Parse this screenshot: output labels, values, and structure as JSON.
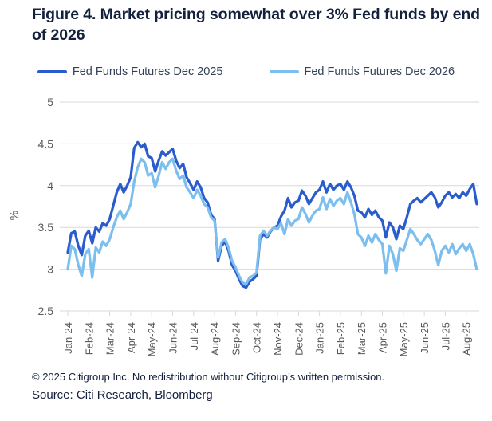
{
  "figure": {
    "title": "Figure 4. Market pricing somewhat over 3% Fed funds by end of 2026"
  },
  "chart_data": {
    "type": "line",
    "title": "Figure 4. Market pricing somewhat over 3% Fed funds by end of 2026",
    "xlabel": "",
    "ylabel": "%",
    "ylim": [
      2.5,
      5
    ],
    "yticks": [
      2.5,
      3,
      3.5,
      4,
      4.5,
      5
    ],
    "grid": "horizontal",
    "legend_position": "top",
    "x_tick_labels": [
      "Jan-24",
      "Feb-24",
      "Mar-24",
      "Apr-24",
      "May-24",
      "Jun-24",
      "Jul-24",
      "Aug-24",
      "Sep-24",
      "Oct-24",
      "Nov-24",
      "Dec-24",
      "Jan-25",
      "Feb-25",
      "Mar-25",
      "Apr-25",
      "May-25",
      "Jun-25",
      "Jul-25",
      "Aug-25"
    ],
    "x_unit": "months since Jan-24, points sampled every 1/6 month",
    "colors": {
      "dec2025_line": "#2a5ccd",
      "dec2026_line": "#7cbeee",
      "gridline": "#d9d9d9",
      "axis_text": "#595959",
      "title_text": "#14213d"
    },
    "series": [
      {
        "name": "Fed Funds Futures Dec 2025",
        "color": "#2a5ccd",
        "values": [
          3.2,
          3.43,
          3.45,
          3.28,
          3.17,
          3.4,
          3.46,
          3.31,
          3.5,
          3.45,
          3.55,
          3.52,
          3.6,
          3.76,
          3.92,
          4.02,
          3.92,
          4.0,
          4.1,
          4.45,
          4.52,
          4.46,
          4.5,
          4.35,
          4.33,
          4.17,
          4.3,
          4.41,
          4.36,
          4.4,
          4.44,
          4.3,
          4.21,
          4.26,
          4.1,
          4.03,
          3.95,
          4.05,
          3.98,
          3.85,
          3.8,
          3.65,
          3.6,
          3.1,
          3.28,
          3.33,
          3.22,
          3.05,
          2.98,
          2.88,
          2.8,
          2.78,
          2.85,
          2.88,
          2.92,
          3.36,
          3.42,
          3.38,
          3.45,
          3.5,
          3.52,
          3.63,
          3.7,
          3.85,
          3.74,
          3.8,
          3.82,
          3.94,
          3.88,
          3.78,
          3.85,
          3.92,
          3.95,
          4.05,
          3.92,
          4.02,
          3.95,
          4.0,
          4.02,
          3.95,
          4.05,
          3.98,
          3.88,
          3.7,
          3.68,
          3.62,
          3.72,
          3.65,
          3.7,
          3.62,
          3.58,
          3.38,
          3.56,
          3.5,
          3.36,
          3.52,
          3.48,
          3.62,
          3.78,
          3.82,
          3.85,
          3.8,
          3.84,
          3.88,
          3.92,
          3.86,
          3.74,
          3.8,
          3.88,
          3.92,
          3.86,
          3.9,
          3.85,
          3.92,
          3.88,
          3.96,
          4.02,
          3.78
        ]
      },
      {
        "name": "Fed Funds Futures Dec 2026",
        "color": "#7cbeee",
        "values": [
          3.0,
          3.28,
          3.24,
          3.05,
          2.92,
          3.18,
          3.24,
          2.9,
          3.26,
          3.2,
          3.33,
          3.28,
          3.36,
          3.5,
          3.62,
          3.7,
          3.6,
          3.68,
          3.78,
          4.05,
          4.22,
          4.32,
          4.28,
          4.12,
          4.15,
          3.98,
          4.12,
          4.28,
          4.2,
          4.28,
          4.32,
          4.18,
          4.08,
          4.12,
          3.98,
          3.92,
          3.85,
          3.95,
          3.88,
          3.78,
          3.74,
          3.62,
          3.58,
          3.14,
          3.32,
          3.36,
          3.26,
          3.1,
          3.02,
          2.92,
          2.84,
          2.82,
          2.9,
          2.92,
          2.96,
          3.4,
          3.46,
          3.4,
          3.46,
          3.5,
          3.48,
          3.55,
          3.42,
          3.6,
          3.52,
          3.58,
          3.6,
          3.74,
          3.66,
          3.56,
          3.64,
          3.7,
          3.72,
          3.86,
          3.72,
          3.84,
          3.76,
          3.82,
          3.85,
          3.78,
          3.92,
          3.8,
          3.66,
          3.42,
          3.38,
          3.28,
          3.4,
          3.32,
          3.42,
          3.35,
          3.3,
          2.95,
          3.28,
          3.18,
          2.98,
          3.25,
          3.22,
          3.35,
          3.48,
          3.42,
          3.35,
          3.3,
          3.36,
          3.42,
          3.35,
          3.22,
          3.05,
          3.22,
          3.28,
          3.2,
          3.3,
          3.18,
          3.25,
          3.3,
          3.22,
          3.3,
          3.18,
          3.0
        ]
      }
    ]
  },
  "footer": {
    "copyright": "© 2025 Citigroup Inc. No redistribution without Citigroup’s written permission.",
    "source": "Source: Citi Research, Bloomberg"
  }
}
